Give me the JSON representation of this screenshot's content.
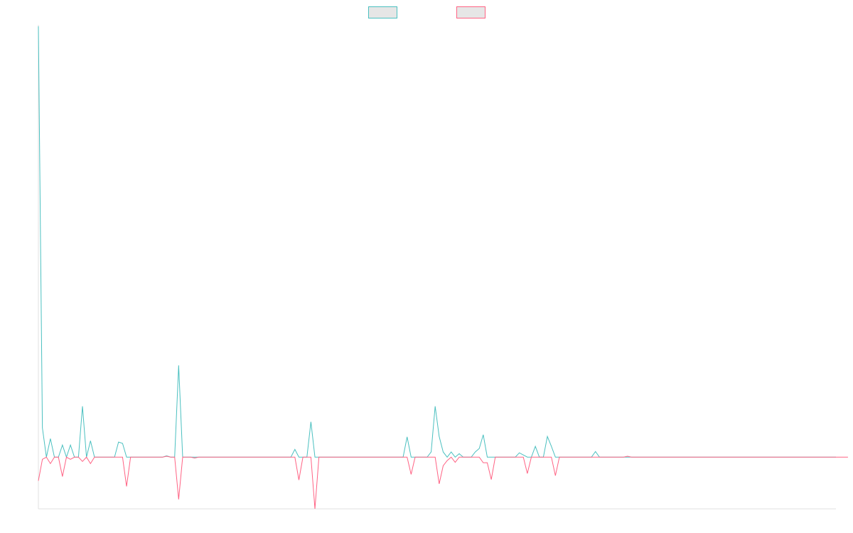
{
  "chart_data": {
    "type": "line",
    "title": "",
    "xlabel": "",
    "ylabel": "",
    "grid": false,
    "legend_placement": "top-center",
    "ylim": [
      -0.12,
      1.0
    ],
    "series": [
      {
        "name": "",
        "color": "#4bc0c0",
        "fill": "#e6e6e6",
        "values": [
          1.0,
          0.068,
          0,
          0.043,
          0,
          0,
          0.028,
          0,
          0.028,
          0,
          0,
          0.118,
          0,
          0.038,
          0,
          0,
          0,
          0,
          0,
          0,
          0.035,
          0.032,
          0,
          0,
          0,
          0,
          0,
          0,
          0,
          0,
          0,
          0,
          0.003,
          0,
          0,
          0.213,
          0,
          0,
          0,
          0,
          0,
          0,
          0,
          0,
          0,
          0,
          0,
          0,
          0,
          0,
          0,
          0,
          0,
          0,
          0,
          0,
          0,
          0,
          0,
          0,
          0,
          0,
          0,
          0,
          0.018,
          0,
          0,
          0,
          0.082,
          0,
          0,
          0,
          0,
          0,
          0,
          0,
          0,
          0,
          0,
          0,
          0,
          0,
          0,
          0,
          0,
          0,
          0,
          0,
          0,
          0,
          0,
          0,
          0.047,
          0,
          0,
          0,
          0,
          0,
          0.012,
          0.118,
          0.048,
          0.012,
          0,
          0.012,
          0,
          0.008,
          0,
          0,
          0,
          0.012,
          0.02,
          0.052,
          0,
          0,
          0,
          0,
          0,
          0,
          0,
          0,
          0.01,
          0.005,
          0,
          0,
          0.025,
          0,
          0,
          0.048,
          0.025,
          0,
          0,
          0,
          0,
          0,
          0,
          0,
          0,
          0,
          0,
          0.013,
          0,
          0,
          0,
          0,
          0,
          0,
          0,
          0,
          0,
          0,
          0,
          0,
          0,
          0,
          0,
          0,
          0,
          0,
          0,
          0,
          0,
          0,
          0,
          0,
          0,
          0,
          0,
          0,
          0,
          0,
          0,
          0,
          0,
          0,
          0,
          0,
          0,
          0,
          0,
          0,
          0,
          0,
          0,
          0,
          0,
          0,
          0,
          0,
          0,
          0,
          0,
          0,
          0,
          0,
          0,
          0,
          0,
          0,
          0,
          0
        ]
      },
      {
        "name": "",
        "color": "#ff6384",
        "fill": "#e6e6e6",
        "values": [
          -0.055,
          -0.005,
          0,
          -0.015,
          0,
          0,
          -0.045,
          0,
          -0.005,
          0,
          0,
          -0.01,
          0,
          -0.015,
          0,
          0,
          0,
          0,
          0,
          0,
          0,
          0,
          -0.068,
          0,
          0,
          0,
          0,
          0,
          0,
          0,
          0,
          0,
          0.002,
          0,
          0,
          -0.098,
          0,
          0,
          0,
          -0.002,
          0,
          0,
          0,
          0,
          0,
          0,
          0,
          0,
          0,
          0,
          0,
          0,
          0,
          0,
          0,
          0,
          0,
          0,
          0,
          0,
          0,
          0,
          0,
          0,
          0,
          -0.053,
          0,
          0,
          0,
          -0.12,
          0,
          0,
          0,
          0,
          0,
          0,
          0,
          0,
          0,
          0,
          0,
          0,
          0,
          0,
          0,
          0,
          0,
          0,
          0,
          0,
          0,
          0,
          0,
          -0.04,
          0,
          0,
          0,
          0,
          0,
          0,
          -0.062,
          -0.02,
          -0.008,
          0,
          -0.012,
          0,
          0,
          0,
          0,
          0,
          0,
          -0.013,
          -0.013,
          -0.052,
          0,
          0,
          0,
          0,
          0,
          0,
          0,
          0,
          -0.038,
          0,
          0,
          0,
          0,
          0,
          0,
          -0.043,
          0,
          0,
          0,
          0,
          0,
          0,
          0,
          0,
          0,
          0,
          0,
          0,
          0,
          0,
          0,
          0,
          0,
          0.002,
          0,
          0,
          0,
          0,
          0,
          0,
          0,
          0,
          0,
          0,
          0,
          0,
          0,
          0,
          0,
          0,
          0,
          0,
          0,
          0,
          0,
          0,
          0,
          0,
          0,
          0,
          0,
          0,
          0,
          0,
          0,
          0,
          0,
          0,
          0,
          0,
          0,
          0,
          0,
          0,
          0,
          0,
          0,
          0,
          0,
          0,
          0,
          0,
          0,
          0,
          0,
          0,
          0,
          0,
          0
        ]
      }
    ]
  }
}
